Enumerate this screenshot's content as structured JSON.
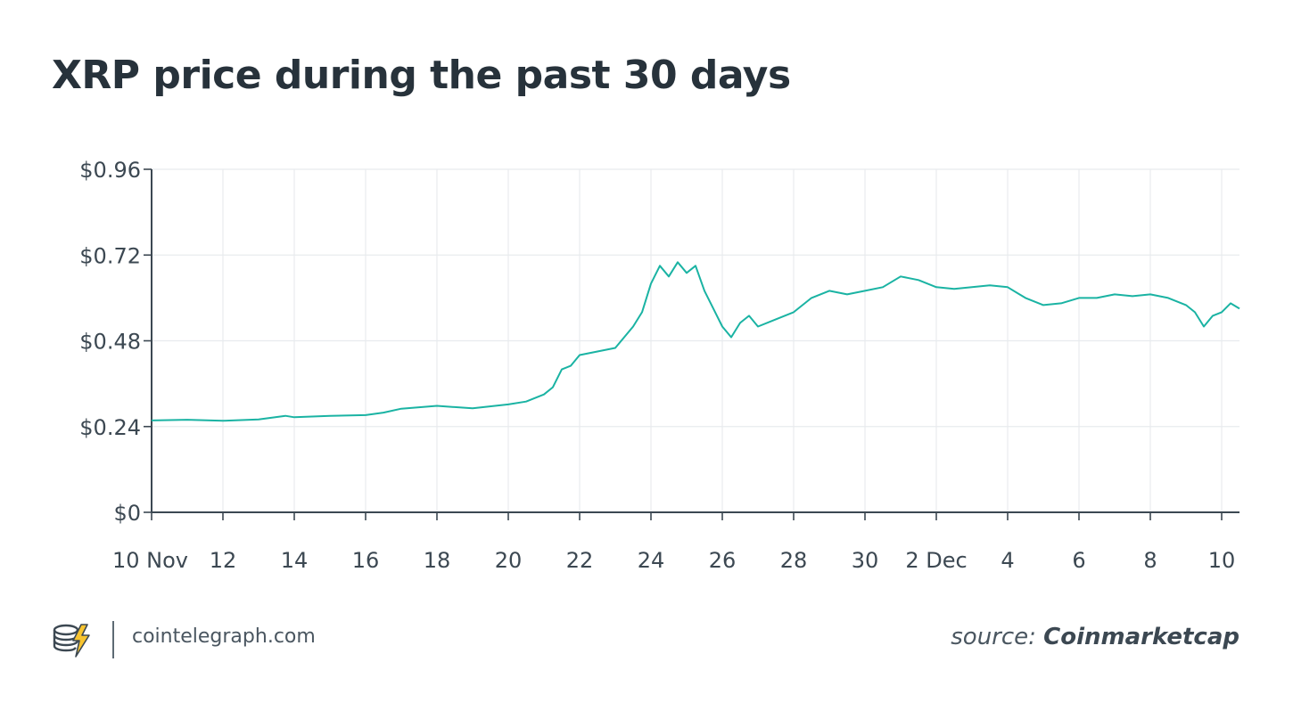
{
  "title": "XRP price during the past 30 days",
  "footer": {
    "site": "cointelegraph.com",
    "source_prefix": "source:",
    "source_name": "Coinmarketcap",
    "logo_icon": "cointelegraph-logo-icon"
  },
  "colors": {
    "line": "#1ab3a3",
    "grid": "#e8ebee",
    "axis": "#3c4852",
    "text": "#27323b"
  },
  "chart_data": {
    "type": "line",
    "title": "XRP price during the past 30 days",
    "xlabel": "",
    "ylabel": "",
    "ylim": [
      0,
      0.96
    ],
    "xlim": [
      "2020-11-10",
      "2020-12-10T12:00"
    ],
    "y_ticks": [
      "$0",
      "$0.24",
      "$0.48",
      "$0.72",
      "$0.96"
    ],
    "y_tick_values": [
      0,
      0.24,
      0.48,
      0.72,
      0.96
    ],
    "x_ticks": [
      "10 Nov",
      "12",
      "14",
      "16",
      "18",
      "20",
      "22",
      "24",
      "26",
      "28",
      "30",
      "2 Dec",
      "4",
      "6",
      "8",
      "10"
    ],
    "x_tick_dates": [
      "2020-11-10",
      "2020-11-12",
      "2020-11-14",
      "2020-11-16",
      "2020-11-18",
      "2020-11-20",
      "2020-11-22",
      "2020-11-24",
      "2020-11-26",
      "2020-11-28",
      "2020-11-30",
      "2020-12-02",
      "2020-12-04",
      "2020-12-06",
      "2020-12-08",
      "2020-12-10"
    ],
    "grid": true,
    "legend": "none",
    "series": [
      {
        "x": [
          "2020-11-10",
          "2020-11-11",
          "2020-11-12",
          "2020-11-13",
          "2020-11-13T18:00",
          "2020-11-14",
          "2020-11-15",
          "2020-11-16",
          "2020-11-16T12:00",
          "2020-11-17",
          "2020-11-18",
          "2020-11-19",
          "2020-11-20",
          "2020-11-20T12:00",
          "2020-11-21",
          "2020-11-21T06:00",
          "2020-11-21T12:00",
          "2020-11-21T18:00",
          "2020-11-22",
          "2020-11-22T12:00",
          "2020-11-23",
          "2020-11-23T06:00",
          "2020-11-23T12:00",
          "2020-11-23T18:00",
          "2020-11-24",
          "2020-11-24T06:00",
          "2020-11-24T12:00",
          "2020-11-24T18:00",
          "2020-11-25",
          "2020-11-25T06:00",
          "2020-11-25T12:00",
          "2020-11-25T18:00",
          "2020-11-26",
          "2020-11-26T06:00",
          "2020-11-26T12:00",
          "2020-11-26T18:00",
          "2020-11-27",
          "2020-11-27T12:00",
          "2020-11-28",
          "2020-11-28T12:00",
          "2020-11-29",
          "2020-11-29T12:00",
          "2020-11-30",
          "2020-11-30T12:00",
          "2020-12-01",
          "2020-12-01T12:00",
          "2020-12-02",
          "2020-12-02T12:00",
          "2020-12-03",
          "2020-12-03T12:00",
          "2020-12-04",
          "2020-12-04T12:00",
          "2020-12-05",
          "2020-12-05T12:00",
          "2020-12-06",
          "2020-12-06T12:00",
          "2020-12-07",
          "2020-12-07T12:00",
          "2020-12-08",
          "2020-12-08T12:00",
          "2020-12-09",
          "2020-12-09T06:00",
          "2020-12-09T12:00",
          "2020-12-09T18:00",
          "2020-12-10",
          "2020-12-10T06:00",
          "2020-12-10T12:00"
        ],
        "values": [
          0.257,
          0.259,
          0.256,
          0.26,
          0.27,
          0.266,
          0.27,
          0.272,
          0.279,
          0.29,
          0.298,
          0.291,
          0.302,
          0.31,
          0.33,
          0.35,
          0.4,
          0.41,
          0.44,
          0.45,
          0.46,
          0.49,
          0.52,
          0.56,
          0.64,
          0.69,
          0.66,
          0.7,
          0.67,
          0.69,
          0.62,
          0.57,
          0.52,
          0.49,
          0.53,
          0.55,
          0.52,
          0.54,
          0.56,
          0.6,
          0.62,
          0.61,
          0.62,
          0.63,
          0.66,
          0.65,
          0.63,
          0.625,
          0.63,
          0.635,
          0.63,
          0.6,
          0.58,
          0.585,
          0.6,
          0.6,
          0.61,
          0.605,
          0.61,
          0.6,
          0.58,
          0.56,
          0.52,
          0.55,
          0.56,
          0.585,
          0.57
        ]
      }
    ]
  }
}
